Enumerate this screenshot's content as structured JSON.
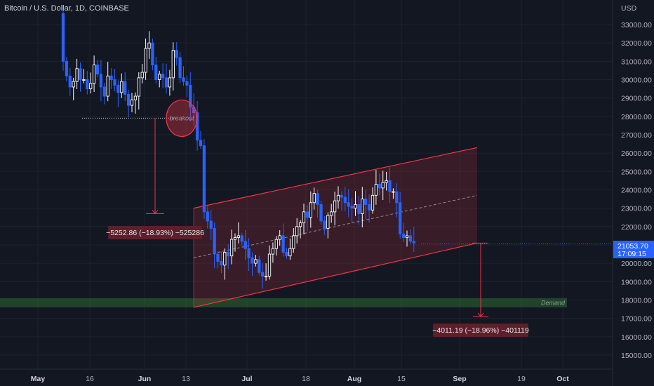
{
  "header": {
    "symbol": "Bitcoin / U.S. Dollar, 1D, COINBASE"
  },
  "axis": {
    "currency": "USD",
    "y_labels": [
      "33000.00",
      "32000.00",
      "31000.00",
      "30000.00",
      "29000.00",
      "28000.00",
      "27000.00",
      "26000.00",
      "25000.00",
      "24000.00",
      "23000.00",
      "22000.00",
      "21000.00",
      "20000.00",
      "19000.00",
      "18000.00",
      "17000.00",
      "16000.00",
      "15000.00"
    ],
    "x_labels": [
      {
        "label": "May",
        "major": true
      },
      {
        "label": "16",
        "major": false
      },
      {
        "label": "Jun",
        "major": true
      },
      {
        "label": "13",
        "major": false
      },
      {
        "label": "Jul",
        "major": true
      },
      {
        "label": "18",
        "major": false
      },
      {
        "label": "Aug",
        "major": true
      },
      {
        "label": "15",
        "major": false
      },
      {
        "label": "Sep",
        "major": true
      },
      {
        "label": "19",
        "major": false
      },
      {
        "label": "Oct",
        "major": true
      }
    ]
  },
  "last_price": {
    "value": "21053.70",
    "countdown": "17:09:15",
    "color": "#2962ff"
  },
  "annotations": {
    "breakout": "breakout",
    "demand": "Demand",
    "measure_1": "−5252.86 (−18.93%) −525286",
    "measure_2": "−4011.19 (−18.96%) −401119"
  },
  "colors": {
    "background": "#131722",
    "candle_up": "#ffffff",
    "candle_down": "#2962ff",
    "channel": "#f23645",
    "demand_zone": "#2e7d32",
    "measure_label": "#5d1f2a"
  },
  "chart_data": {
    "type": "candlestick",
    "symbol": "BTCUSD",
    "interval": "1D",
    "exchange": "COINBASE",
    "ylim": [
      14500,
      34000
    ],
    "close_path": [
      33600,
      31000,
      30200,
      29600,
      29900,
      30600,
      30000,
      30000,
      29500,
      29800,
      30800,
      30300,
      29600,
      29100,
      30200,
      30000,
      29700,
      29300,
      29900,
      29200,
      28600,
      28900,
      29100,
      30100,
      30400,
      31700,
      32000,
      30800,
      30000,
      30300,
      30100,
      29600,
      30100,
      31600,
      31200,
      30100,
      29900,
      29700,
      28500,
      28200,
      26700,
      26400,
      22800,
      22300,
      21900,
      20500,
      20100,
      19900,
      20600,
      20400,
      21300,
      21400,
      21500,
      21200,
      20800,
      20300,
      20000,
      20200,
      19500,
      19300,
      19300,
      20500,
      20800,
      21300,
      21500,
      20600,
      20400,
      20800,
      21500,
      22000,
      22200,
      22800,
      22500,
      23300,
      23800,
      23200,
      22300,
      21900,
      22600,
      22800,
      23400,
      23700,
      23600,
      23300,
      23100,
      23000,
      23200,
      22700,
      23500,
      23200,
      22900,
      23700,
      24300,
      24100,
      24400,
      24500,
      23900,
      23900,
      23300,
      21600,
      21400,
      21500,
      21200,
      21100
    ],
    "breakout_level": 27900,
    "channel": {
      "upper": {
        "from": 23000,
        "to": 26300
      },
      "lower": {
        "from": 17600,
        "to": 21100
      },
      "midline": {
        "from": 20300,
        "to": 23700
      }
    },
    "demand_zone": [
      17600,
      18100
    ],
    "measures": [
      {
        "from": 27900,
        "to": 22700,
        "label": "−5252.86 (−18.93%) −525286"
      },
      {
        "from": 21100,
        "to": 17100,
        "label": "−4011.19 (−18.96%) −401119"
      }
    ],
    "last_price": 21053.7
  }
}
